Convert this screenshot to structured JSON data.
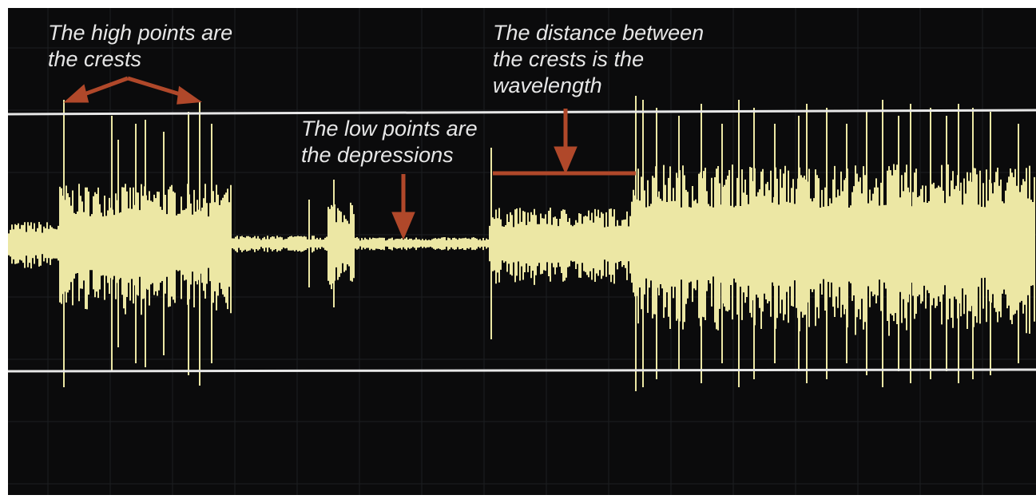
{
  "annotations": [
    {
      "lines": [
        "The high points are",
        "the crests"
      ]
    },
    {
      "lines": [
        "The low points are",
        "the depressions"
      ]
    },
    {
      "lines": [
        "The distance between",
        "the crests is the",
        "wavelength"
      ]
    }
  ]
}
